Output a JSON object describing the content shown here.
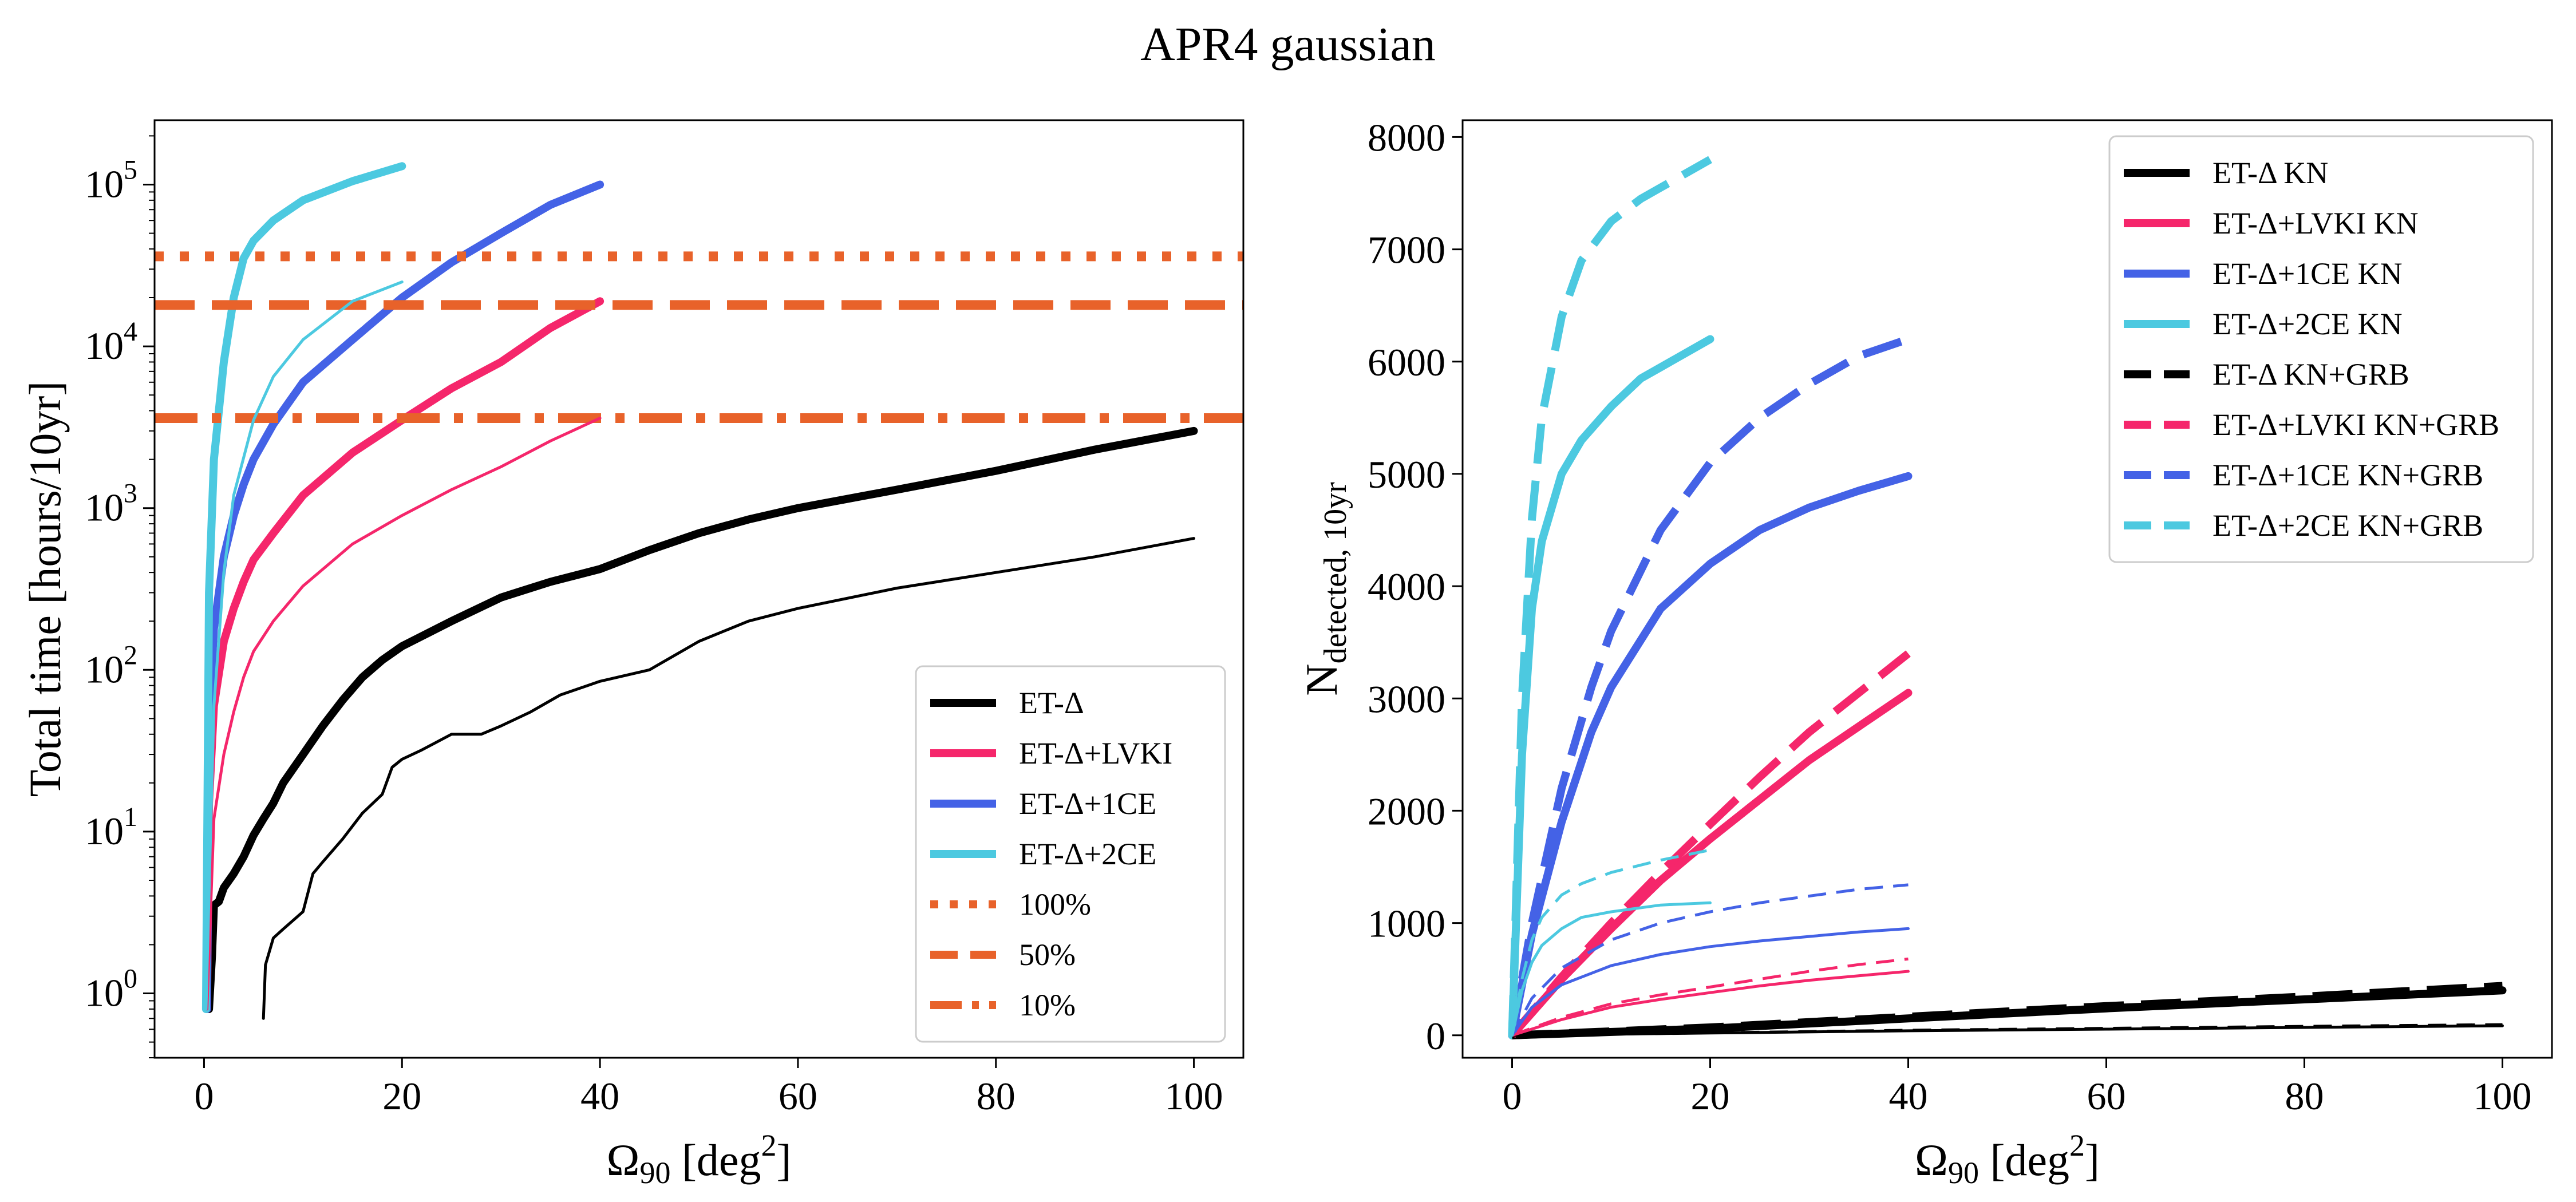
{
  "figure": {
    "title": "APR4 gaussian"
  },
  "colors": {
    "black": "#000000",
    "pink": "#f5266b",
    "blue": "#4462e6",
    "cyan": "#4cc9e0",
    "orange": "#e8622a"
  },
  "chart_data": [
    {
      "type": "line",
      "xlabel": "Ω90 [deg2]",
      "ylabel": "Total time [hours/10yr]",
      "yscale": "log",
      "xlim": [
        -5,
        105
      ],
      "ylim": [
        0.4,
        250000
      ],
      "xticks": [
        0,
        20,
        40,
        60,
        80,
        100
      ],
      "yticks": [
        1,
        10,
        100,
        1000,
        10000,
        100000
      ],
      "legend_position": "lower-right",
      "series": [
        {
          "name": "ET-Δ",
          "color": "black",
          "style": "solid",
          "width": "thick",
          "legend": true,
          "x": [
            0.5,
            0.8,
            1,
            1.5,
            2,
            3,
            4,
            5,
            6,
            7,
            8,
            10,
            12,
            14,
            16,
            18,
            20,
            25,
            30,
            35,
            40,
            45,
            50,
            55,
            60,
            70,
            80,
            90,
            100
          ],
          "y": [
            0.8,
            1.7,
            3.5,
            3.7,
            4.5,
            5.5,
            7,
            9.5,
            12,
            15,
            20,
            30,
            45,
            65,
            90,
            115,
            140,
            200,
            280,
            350,
            420,
            550,
            700,
            850,
            1000,
            1300,
            1700,
            2300,
            3000
          ]
        },
        {
          "name": "ET-Δ+LVKI",
          "color": "pink",
          "style": "solid",
          "width": "thick",
          "legend": true,
          "x": [
            0.3,
            0.5,
            1,
            2,
            3,
            4,
            5,
            7,
            10,
            15,
            20,
            25,
            30,
            35,
            40
          ],
          "y": [
            0.8,
            15,
            60,
            150,
            240,
            350,
            480,
            700,
            1200,
            2200,
            3500,
            5500,
            8000,
            13000,
            19000
          ]
        },
        {
          "name": "ET-Δ+1CE",
          "color": "blue",
          "style": "solid",
          "width": "thick",
          "legend": true,
          "x": [
            0.3,
            0.5,
            1,
            2,
            3,
            4,
            5,
            7,
            10,
            15,
            20,
            25,
            30,
            35,
            40
          ],
          "y": [
            0.8,
            50,
            180,
            500,
            900,
            1400,
            2000,
            3300,
            6000,
            11000,
            20000,
            33000,
            50000,
            75000,
            100000
          ]
        },
        {
          "name": "ET-Δ+2CE",
          "color": "cyan",
          "style": "solid",
          "width": "thick",
          "legend": true,
          "x": [
            0.2,
            0.5,
            1,
            2,
            3,
            4,
            5,
            7,
            10,
            15,
            20
          ],
          "y": [
            0.8,
            300,
            2000,
            8000,
            20000,
            35000,
            45000,
            60000,
            80000,
            105000,
            130000
          ]
        },
        {
          "name": "100%",
          "color": "orange",
          "style": "dotted",
          "width": "thick",
          "legend": true,
          "hline": 36000
        },
        {
          "name": "50%",
          "color": "orange",
          "style": "dashed",
          "width": "thick",
          "legend": true,
          "hline": 18000
        },
        {
          "name": "10%",
          "color": "orange",
          "style": "dashdot",
          "width": "thick",
          "legend": true,
          "hline": 3600
        },
        {
          "color": "black",
          "style": "solid",
          "width": "thin",
          "legend": false,
          "x": [
            6,
            6.2,
            7,
            8,
            10,
            11,
            12,
            14,
            16,
            18,
            19,
            20,
            22,
            25,
            28,
            30,
            33,
            36,
            40,
            45,
            50,
            55,
            60,
            70,
            80,
            90,
            100
          ],
          "y": [
            0.7,
            1.5,
            2.2,
            2.5,
            3.2,
            5.5,
            6.5,
            9,
            13,
            17,
            25,
            28,
            32,
            40,
            40,
            45,
            55,
            70,
            85,
            100,
            150,
            200,
            240,
            320,
            400,
            500,
            650
          ]
        },
        {
          "color": "pink",
          "style": "solid",
          "width": "thin",
          "legend": false,
          "x": [
            0.3,
            1,
            2,
            3,
            4,
            5,
            7,
            10,
            15,
            20,
            25,
            30,
            35,
            40
          ],
          "y": [
            0.8,
            12,
            30,
            55,
            90,
            130,
            200,
            330,
            600,
            900,
            1300,
            1800,
            2600,
            3600
          ]
        },
        {
          "color": "cyan",
          "style": "solid",
          "width": "thin",
          "legend": false,
          "x": [
            0.2,
            1,
            2,
            3,
            5,
            7,
            10,
            15,
            20
          ],
          "y": [
            0.8,
            60,
            400,
            1200,
            3500,
            6500,
            11000,
            19000,
            25000
          ]
        }
      ]
    },
    {
      "type": "line",
      "xlabel": "Ω90 [deg2]",
      "ylabel": "Ndetected, 10yr",
      "xlim": [
        -5,
        105
      ],
      "ylim": [
        -200,
        8150
      ],
      "xticks": [
        0,
        20,
        40,
        60,
        80,
        100
      ],
      "yticks": [
        0,
        1000,
        2000,
        3000,
        4000,
        5000,
        6000,
        7000,
        8000
      ],
      "legend_position": "upper-right",
      "series": [
        {
          "name": "ET-Δ KN",
          "color": "black",
          "style": "solid",
          "width": "thick",
          "legend": true,
          "x": [
            0,
            20,
            40,
            60,
            80,
            100
          ],
          "y": [
            0,
            60,
            150,
            240,
            320,
            400
          ]
        },
        {
          "name": "ET-Δ+LVKI KN",
          "color": "pink",
          "style": "solid",
          "width": "thick",
          "legend": true,
          "x": [
            0,
            5,
            10,
            15,
            20,
            25,
            30,
            35,
            40
          ],
          "y": [
            0,
            500,
            950,
            1380,
            1750,
            2100,
            2450,
            2750,
            3050
          ]
        },
        {
          "name": "ET-Δ+1CE KN",
          "color": "blue",
          "style": "solid",
          "width": "thick",
          "legend": true,
          "x": [
            0,
            2,
            5,
            8,
            10,
            15,
            20,
            25,
            30,
            35,
            40
          ],
          "y": [
            0,
            900,
            1900,
            2700,
            3100,
            3800,
            4200,
            4500,
            4700,
            4850,
            4980
          ]
        },
        {
          "name": "ET-Δ+2CE KN",
          "color": "cyan",
          "style": "solid",
          "width": "thick",
          "legend": true,
          "x": [
            0,
            1,
            2,
            3,
            5,
            7,
            10,
            13,
            15,
            20
          ],
          "y": [
            0,
            2500,
            3800,
            4400,
            5000,
            5300,
            5600,
            5850,
            5950,
            6200
          ]
        },
        {
          "name": "ET-Δ KN+GRB",
          "color": "black",
          "style": "dashed",
          "width": "thick",
          "legend": true,
          "x": [
            0,
            20,
            40,
            60,
            80,
            100
          ],
          "y": [
            0,
            70,
            165,
            260,
            345,
            440
          ]
        },
        {
          "name": "ET-Δ+LVKI KN+GRB",
          "color": "pink",
          "style": "dashed",
          "width": "thick",
          "legend": true,
          "x": [
            0,
            5,
            10,
            15,
            20,
            25,
            30,
            35,
            40
          ],
          "y": [
            0,
            520,
            1000,
            1450,
            1880,
            2300,
            2700,
            3050,
            3400
          ]
        },
        {
          "name": "ET-Δ+1CE KN+GRB",
          "color": "blue",
          "style": "dashed",
          "width": "thick",
          "legend": true,
          "x": [
            0,
            2,
            5,
            8,
            10,
            15,
            20,
            25,
            30,
            35,
            40
          ],
          "y": [
            0,
            1000,
            2200,
            3100,
            3600,
            4500,
            5100,
            5500,
            5800,
            6050,
            6200
          ]
        },
        {
          "name": "ET-Δ+2CE KN+GRB",
          "color": "cyan",
          "style": "dashed",
          "width": "thick",
          "legend": true,
          "x": [
            0,
            1,
            2,
            3,
            5,
            7,
            10,
            13,
            15,
            20
          ],
          "y": [
            0,
            3000,
            4600,
            5500,
            6400,
            6900,
            7250,
            7450,
            7550,
            7800
          ]
        },
        {
          "color": "black",
          "style": "solid",
          "width": "thin",
          "legend": false,
          "x": [
            0,
            20,
            40,
            60,
            80,
            100
          ],
          "y": [
            0,
            20,
            40,
            55,
            70,
            85
          ]
        },
        {
          "color": "black",
          "style": "dashed",
          "width": "thin",
          "legend": false,
          "x": [
            0,
            20,
            40,
            60,
            80,
            100
          ],
          "y": [
            0,
            22,
            45,
            62,
            80,
            95
          ]
        },
        {
          "color": "pink",
          "style": "solid",
          "width": "thin",
          "legend": false,
          "x": [
            0,
            5,
            10,
            15,
            20,
            25,
            30,
            35,
            40
          ],
          "y": [
            0,
            140,
            250,
            320,
            380,
            440,
            490,
            530,
            570
          ]
        },
        {
          "color": "pink",
          "style": "dashed",
          "width": "thin",
          "legend": false,
          "x": [
            0,
            5,
            10,
            15,
            20,
            25,
            30,
            35,
            40
          ],
          "y": [
            0,
            160,
            280,
            360,
            430,
            500,
            570,
            630,
            680
          ]
        },
        {
          "color": "blue",
          "style": "solid",
          "width": "thin",
          "legend": false,
          "x": [
            0,
            2,
            5,
            10,
            15,
            20,
            25,
            30,
            35,
            40
          ],
          "y": [
            0,
            250,
            450,
            620,
            720,
            790,
            840,
            880,
            920,
            950
          ]
        },
        {
          "color": "blue",
          "style": "dashed",
          "width": "thin",
          "legend": false,
          "x": [
            0,
            2,
            5,
            10,
            15,
            20,
            25,
            30,
            35,
            40
          ],
          "y": [
            0,
            330,
            600,
            850,
            1000,
            1100,
            1180,
            1240,
            1300,
            1340
          ]
        },
        {
          "color": "cyan",
          "style": "solid",
          "width": "thin",
          "legend": false,
          "x": [
            0,
            1,
            2,
            3,
            5,
            7,
            10,
            15,
            20
          ],
          "y": [
            0,
            400,
            650,
            800,
            950,
            1050,
            1100,
            1160,
            1180
          ]
        },
        {
          "color": "cyan",
          "style": "dashed",
          "width": "thin",
          "legend": false,
          "x": [
            0,
            1,
            2,
            3,
            5,
            7,
            10,
            15,
            20
          ],
          "y": [
            0,
            500,
            850,
            1050,
            1250,
            1350,
            1450,
            1560,
            1650
          ]
        }
      ]
    }
  ]
}
